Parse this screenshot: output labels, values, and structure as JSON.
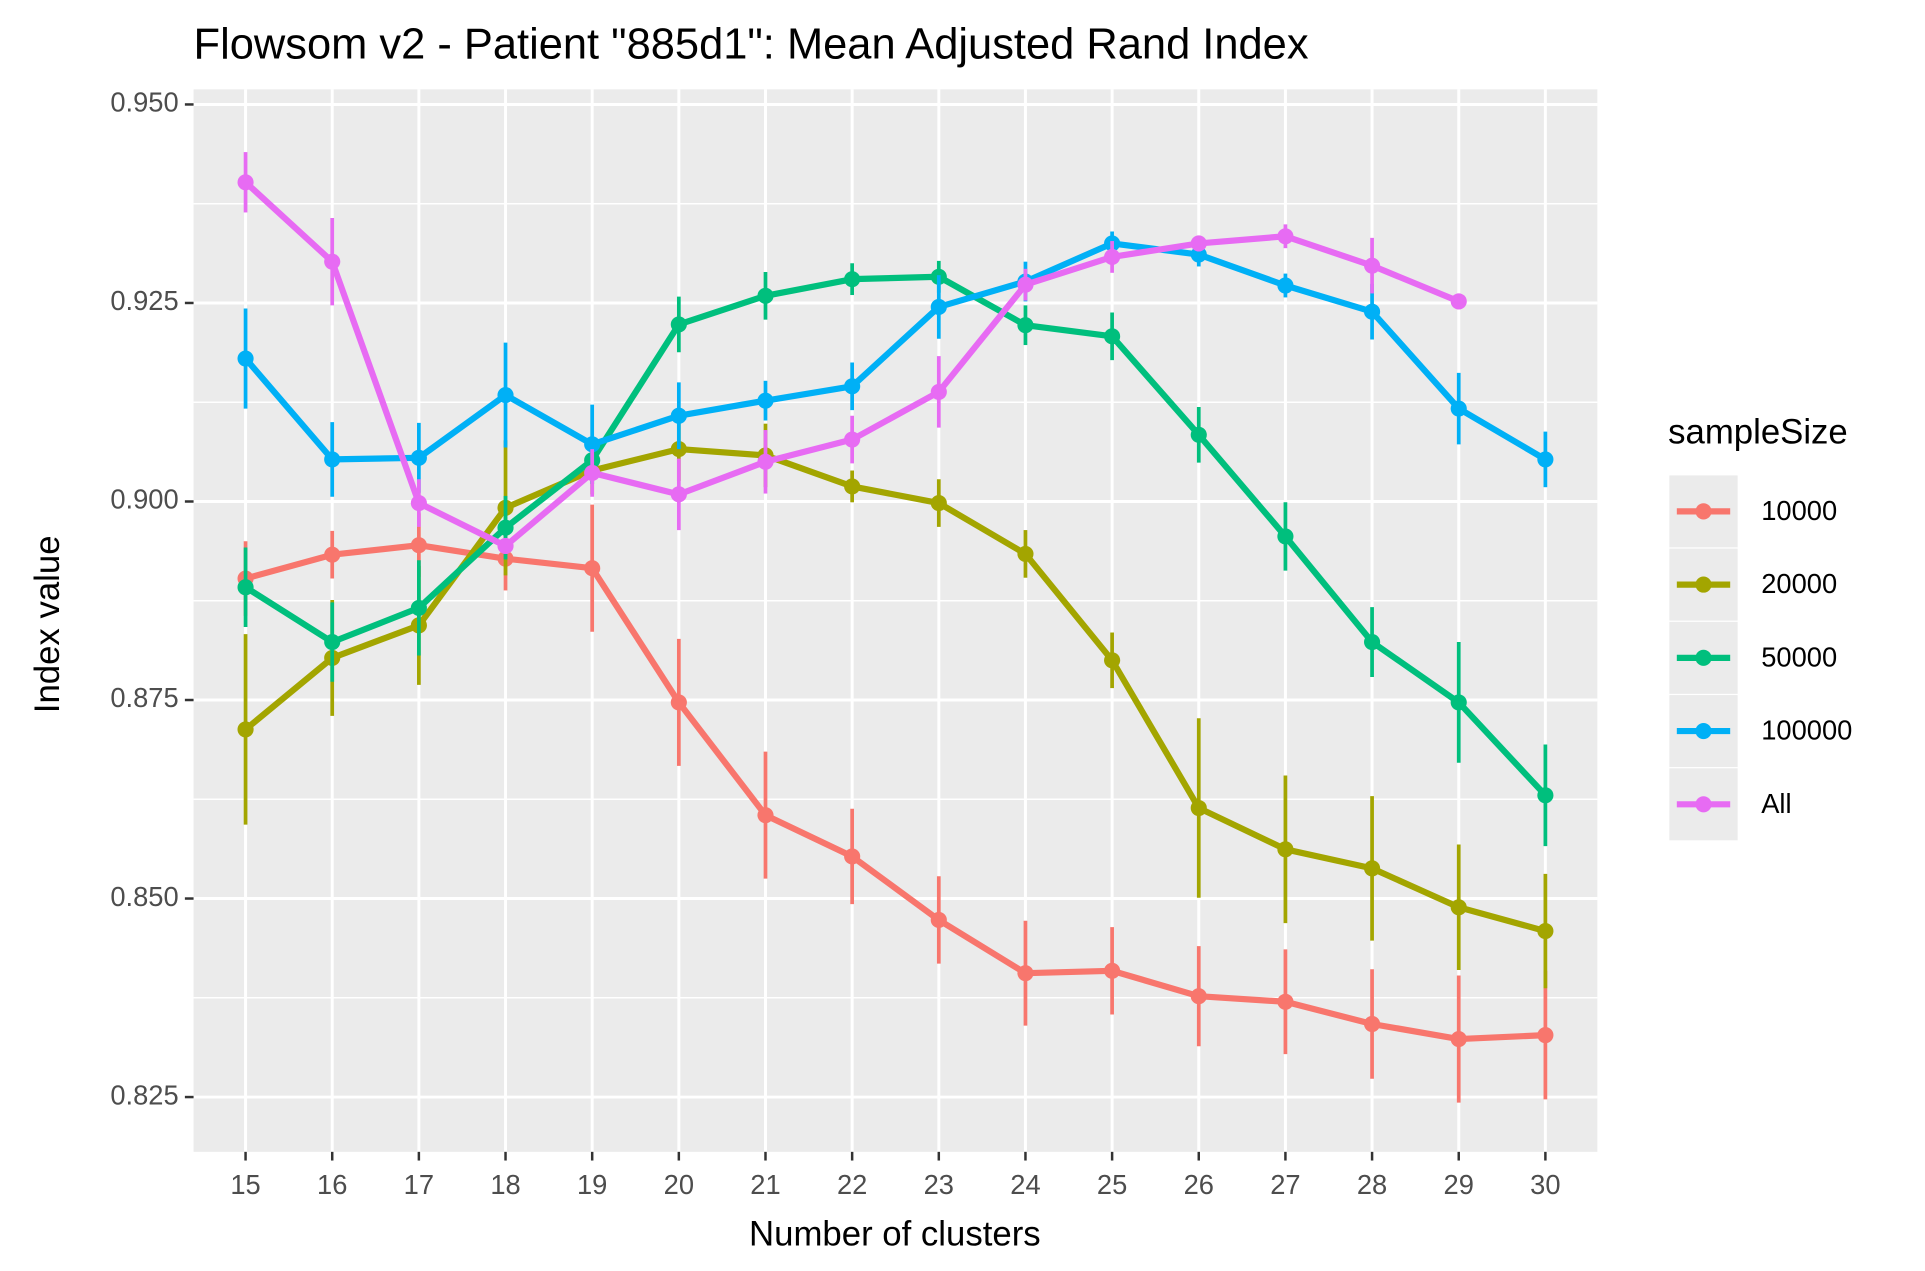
{
  "chart_data": {
    "type": "line",
    "title": "Flowsom v2 - Patient \"885d1\": Mean Adjusted Rand Index",
    "x_label": "Number of clusters",
    "y_label": "Index value",
    "legend_title": "sampleSize",
    "legend_position": "right",
    "grid": true,
    "x": [
      15,
      16,
      17,
      18,
      19,
      20,
      21,
      22,
      23,
      24,
      25,
      26,
      27,
      28,
      29,
      30
    ],
    "xlim": [
      14.4,
      30.6
    ],
    "xticks": [
      15,
      16,
      17,
      18,
      19,
      20,
      21,
      22,
      23,
      24,
      25,
      26,
      27,
      28,
      29,
      30
    ],
    "ylim": [
      0.8181,
      0.9519
    ],
    "yticks": [
      0.825,
      {
        "value": 0.85,
        "label": "0.850"
      },
      0.875,
      {
        "value": 0.9,
        "label": "0.900"
      },
      0.925,
      {
        "value": 0.95,
        "label": "0.950"
      }
    ],
    "series": [
      {
        "name": "10000",
        "color": "#F8766D",
        "values": [
          0.8903,
          0.8933,
          0.8945,
          0.8928,
          0.8916,
          0.8747,
          0.8605,
          0.8553,
          0.8473,
          0.8406,
          0.8409,
          0.8377,
          0.837,
          0.8342,
          0.8323,
          0.8328
        ],
        "errors": [
          0.0047,
          0.003,
          0.004,
          0.004,
          0.008,
          0.008,
          0.008,
          0.006,
          0.0055,
          0.0066,
          0.0055,
          0.0063,
          0.0066,
          0.0069,
          0.008,
          0.0081
        ]
      },
      {
        "name": "20000",
        "color": "#A3A500",
        "values": [
          0.8713,
          0.8803,
          0.8844,
          0.8992,
          0.9039,
          0.9066,
          0.9058,
          0.9019,
          0.8998,
          0.8934,
          0.88,
          0.8614,
          0.8562,
          0.8538,
          0.8489,
          0.8459
        ],
        "errors": [
          0.012,
          0.0073,
          0.0075,
          0.0085,
          0.003,
          0.004,
          0.004,
          0.002,
          0.003,
          0.003,
          0.0035,
          0.0113,
          0.0093,
          0.0091,
          0.0079,
          0.0072
        ]
      },
      {
        "name": "50000",
        "color": "#00BF7D",
        "values": [
          0.8892,
          0.8823,
          0.8866,
          0.8967,
          0.9052,
          0.9223,
          0.9259,
          0.928,
          0.9283,
          0.9222,
          0.9208,
          0.9084,
          0.8956,
          0.8823,
          0.8747,
          0.863
        ],
        "errors": [
          0.005,
          0.005,
          0.006,
          0.004,
          0.003,
          0.0035,
          0.003,
          0.002,
          0.002,
          0.0025,
          0.003,
          0.0035,
          0.0043,
          0.0044,
          0.0076,
          0.0064
        ]
      },
      {
        "name": "100000",
        "color": "#00B0F6",
        "values": [
          0.918,
          0.9053,
          0.9055,
          0.9134,
          0.9072,
          0.9108,
          0.9127,
          0.9145,
          0.9245,
          0.9277,
          0.9325,
          0.9311,
          0.9272,
          0.9239,
          0.9117,
          0.9053
        ],
        "errors": [
          0.0063,
          0.0047,
          0.0044,
          0.0066,
          0.005,
          0.0042,
          0.0025,
          0.003,
          0.004,
          0.0025,
          0.0015,
          0.0015,
          0.0015,
          0.0035,
          0.0045,
          0.0035
        ]
      },
      {
        "name": "All",
        "color": "#E76BF3",
        "values": [
          0.9402,
          0.9302,
          0.8998,
          0.8944,
          0.9036,
          0.9009,
          0.905,
          0.9078,
          0.9138,
          0.9273,
          0.9308,
          0.9325,
          0.9334,
          0.9297,
          0.9252,
          null
        ],
        "errors": [
          0.0038,
          0.0055,
          0.003,
          0.001,
          0.003,
          0.0045,
          0.004,
          0.003,
          0.0045,
          0.002,
          0.002,
          0.001,
          0.0015,
          0.0035,
          0.001,
          null
        ]
      }
    ]
  }
}
